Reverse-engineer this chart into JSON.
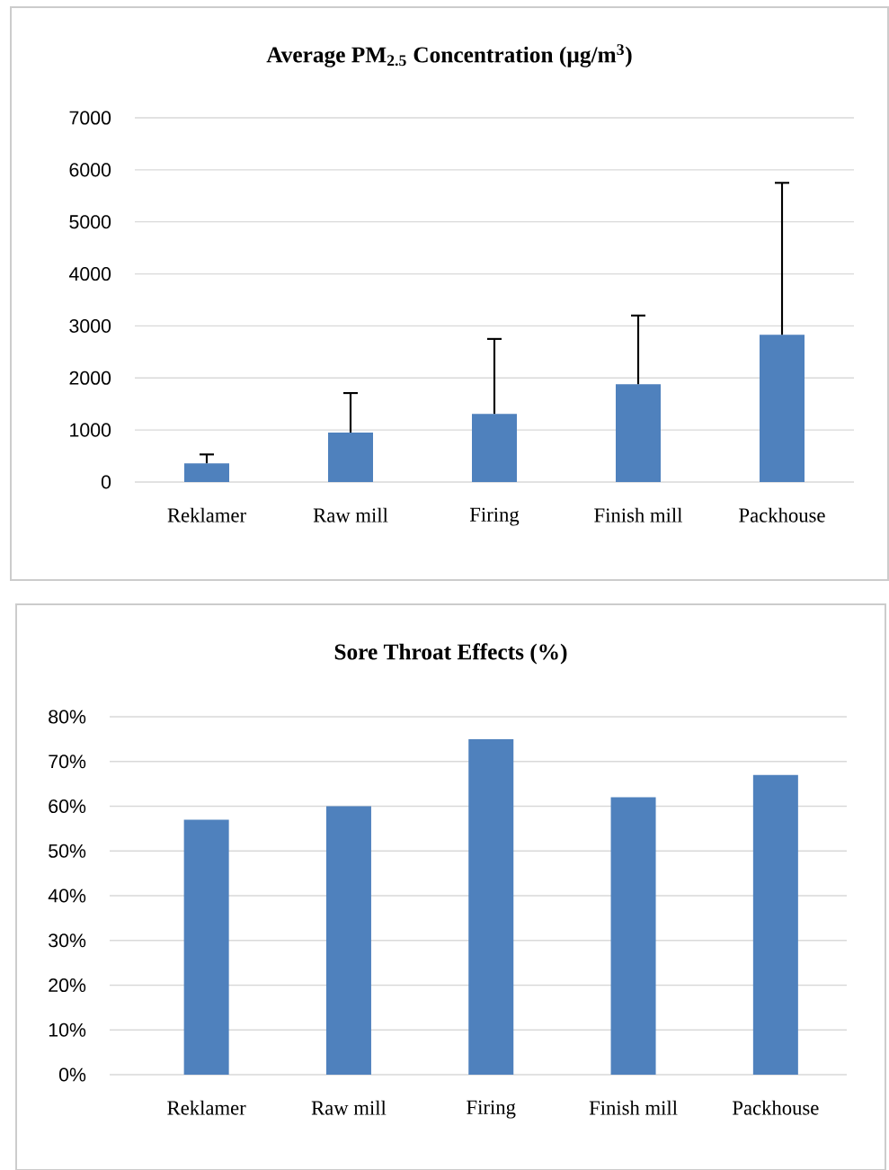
{
  "chart_data": [
    {
      "type": "bar",
      "title": "Average PM$_{2.5}$ Concentration (µg/m$^{3}$)",
      "categories": [
        "Reklamer",
        "Raw mill",
        "Firing",
        "Finish mill",
        "Packhouse"
      ],
      "values": [
        360,
        950,
        1310,
        1880,
        2830
      ],
      "errors": [
        [
          360,
          530
        ],
        [
          950,
          1710
        ],
        [
          1310,
          2750
        ],
        [
          1880,
          3200
        ],
        [
          2830,
          5750
        ]
      ],
      "color": "#4f81bd",
      "ylim": [
        0,
        7000
      ],
      "yticks": [
        0,
        1000,
        2000,
        3000,
        4000,
        5000,
        6000,
        7000
      ],
      "grid": "y"
    },
    {
      "type": "bar",
      "title": "Sore Throat Effects (%)",
      "categories": [
        "Reklamer",
        "Raw mill",
        "Firing",
        "Finish mill",
        "Packhouse"
      ],
      "values": [
        57,
        60,
        75,
        62,
        67
      ],
      "color": "#4f81bd",
      "ylim": [
        0,
        80
      ],
      "yticks": [
        {
          "value": 0,
          "label": "0%"
        },
        {
          "value": 10,
          "label": "10%"
        },
        {
          "value": 20,
          "label": "20%"
        },
        {
          "value": 30,
          "label": "30%"
        },
        {
          "value": 40,
          "label": "40%"
        },
        {
          "value": 50,
          "label": "50%"
        },
        {
          "value": 60,
          "label": "60%"
        },
        {
          "value": 70,
          "label": "70%"
        },
        {
          "value": 80,
          "label": "80%"
        }
      ],
      "grid": "y"
    }
  ]
}
